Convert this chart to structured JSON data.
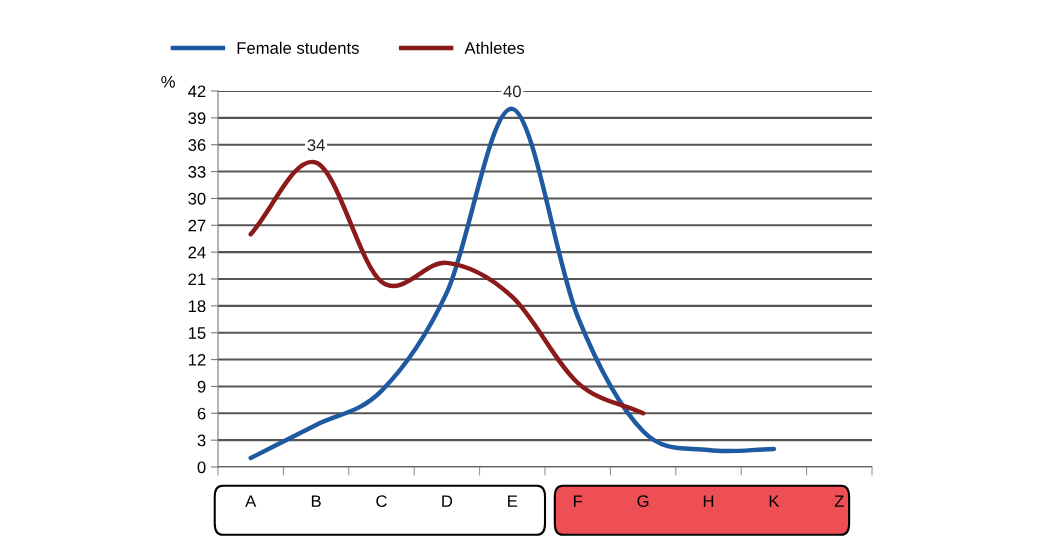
{
  "chart_data": {
    "type": "line",
    "ylabel": "%",
    "categories": [
      "A",
      "B",
      "C",
      "D",
      "E",
      "F",
      "G",
      "H",
      "K",
      "Z"
    ],
    "series": [
      {
        "name": "Female students",
        "color": "#1f5aa0",
        "values": [
          1,
          4.7,
          8.5,
          19.5,
          40,
          16.8,
          4,
          1.9,
          2,
          null
        ],
        "value_labels": [
          null,
          null,
          null,
          null,
          "40",
          null,
          null,
          null,
          null,
          null
        ]
      },
      {
        "name": "Athletes",
        "color": "#8b1a1a",
        "values": [
          26,
          34,
          20.7,
          22.8,
          19,
          9.4,
          6,
          null,
          null,
          null
        ],
        "value_labels": [
          null,
          "34",
          null,
          null,
          null,
          null,
          null,
          null,
          null,
          null
        ]
      }
    ],
    "ylim": [
      0,
      42
    ],
    "yticks": [
      0,
      3,
      6,
      9,
      12,
      15,
      18,
      21,
      24,
      27,
      30,
      33,
      36,
      39,
      42
    ],
    "grid": "y",
    "legend": "top",
    "marker": "none",
    "line_style": "solid"
  }
}
